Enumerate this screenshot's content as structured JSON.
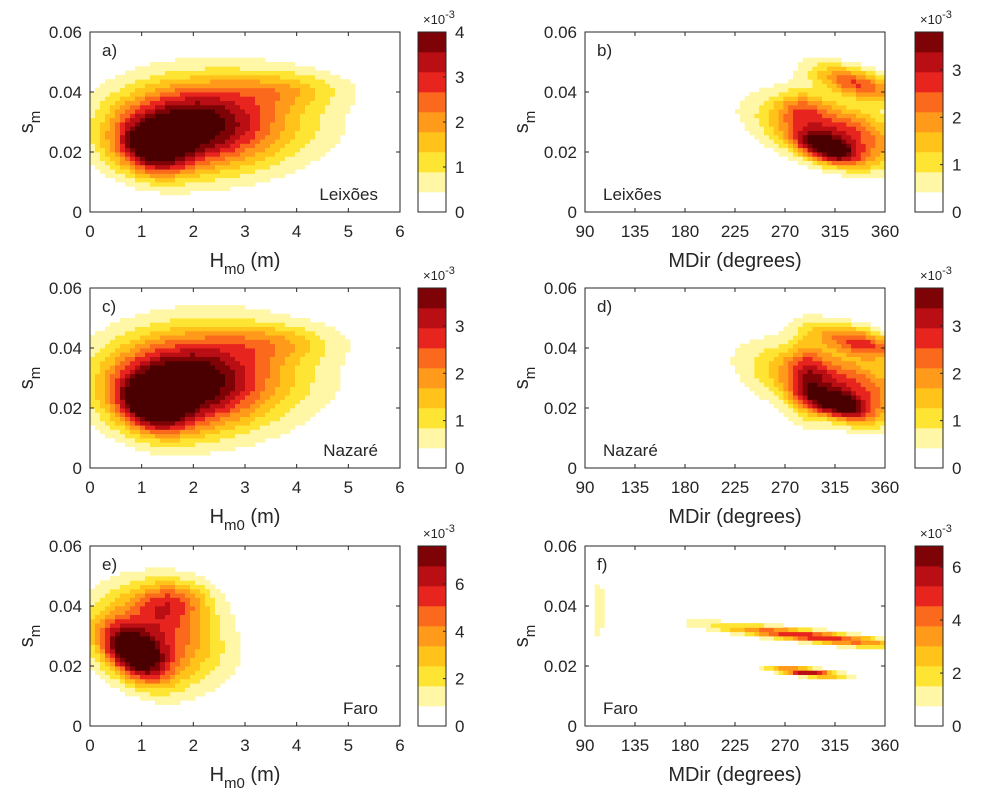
{
  "palette": [
    "#ffffff",
    "#fff7a6",
    "#ffe533",
    "#ffc31a",
    "#ff9a1a",
    "#fb6a1c",
    "#e8241f",
    "#b80e14",
    "#7e0307",
    "#4a0000"
  ],
  "chart_data": [
    {
      "type": "heatmap",
      "panel": "a)",
      "site": "Leixões",
      "xlabel": "H",
      "xlabel_sub": "m0",
      "xlabel_unit": " (m)",
      "ylabel": "s",
      "ylabel_sub": "m",
      "xlim": [
        0,
        6
      ],
      "ylim": [
        0,
        0.06
      ],
      "xticks": [
        "0",
        "1",
        "2",
        "3",
        "4",
        "5",
        "6"
      ],
      "yticks": [
        "0",
        "0.02",
        "0.04",
        "0.06"
      ],
      "colorbar": {
        "ticks": [
          "0",
          "1",
          "2",
          "3",
          "4"
        ],
        "max": 4,
        "multiplier": "×10",
        "exponent": "-3"
      },
      "blobs": [
        {
          "x": 2.5,
          "y": 0.03,
          "sx": 1.3,
          "sy": 0.011,
          "a": 1.4,
          "rot": 8
        },
        {
          "x": 1.7,
          "y": 0.028,
          "sx": 0.9,
          "sy": 0.009,
          "a": 1.3,
          "rot": 10
        },
        {
          "x": 1.2,
          "y": 0.021,
          "sx": 0.45,
          "sy": 0.006,
          "a": 1.5,
          "rot": 18
        },
        {
          "x": 3.8,
          "y": 0.041,
          "sx": 0.8,
          "sy": 0.004,
          "a": 0.5,
          "rot": 0
        }
      ]
    },
    {
      "type": "heatmap",
      "panel": "b)",
      "site": "Leixões",
      "xlabel": "MDir (degrees)",
      "ylabel": "s",
      "ylabel_sub": "m",
      "xlim": [
        90,
        360
      ],
      "ylim": [
        0,
        0.06
      ],
      "xticks": [
        "90",
        "135",
        "180",
        "225",
        "270",
        "315",
        "360"
      ],
      "yticks": [
        "0",
        "0.02",
        "0.04",
        "0.06"
      ],
      "colorbar": {
        "ticks": [
          "0",
          "1",
          "2",
          "3"
        ],
        "max": 3.8,
        "multiplier": "×10",
        "exponent": "-3"
      },
      "blobs": [
        {
          "x": 315,
          "y": 0.027,
          "sx": 28,
          "sy": 0.011,
          "a": 1.6,
          "rot": 60
        },
        {
          "x": 309,
          "y": 0.021,
          "sx": 12,
          "sy": 0.005,
          "a": 1.8,
          "rot": 55
        },
        {
          "x": 335,
          "y": 0.043,
          "sx": 14,
          "sy": 0.007,
          "a": 1.4,
          "rot": 60
        },
        {
          "x": 285,
          "y": 0.035,
          "sx": 14,
          "sy": 0.004,
          "a": 0.5,
          "rot": 0
        }
      ]
    },
    {
      "type": "heatmap",
      "panel": "c)",
      "site": "Nazaré",
      "xlabel": "H",
      "xlabel_sub": "m0",
      "xlabel_unit": " (m)",
      "ylabel": "s",
      "ylabel_sub": "m",
      "xlim": [
        0,
        6
      ],
      "ylim": [
        0,
        0.06
      ],
      "xticks": [
        "0",
        "1",
        "2",
        "3",
        "4",
        "5",
        "6"
      ],
      "yticks": [
        "0",
        "0.02",
        "0.04",
        "0.06"
      ],
      "colorbar": {
        "ticks": [
          "0",
          "1",
          "2",
          "3"
        ],
        "max": 3.8,
        "multiplier": "×10",
        "exponent": "-3"
      },
      "blobs": [
        {
          "x": 2.4,
          "y": 0.031,
          "sx": 1.3,
          "sy": 0.012,
          "a": 1.4,
          "rot": 8
        },
        {
          "x": 1.6,
          "y": 0.027,
          "sx": 0.9,
          "sy": 0.01,
          "a": 1.5,
          "rot": 10
        },
        {
          "x": 1.2,
          "y": 0.021,
          "sx": 0.4,
          "sy": 0.006,
          "a": 1.7,
          "rot": 18
        },
        {
          "x": 3.6,
          "y": 0.042,
          "sx": 0.8,
          "sy": 0.004,
          "a": 0.5,
          "rot": 0
        }
      ]
    },
    {
      "type": "heatmap",
      "panel": "d)",
      "site": "Nazaré",
      "xlabel": "MDir (degrees)",
      "ylabel": "s",
      "ylabel_sub": "m",
      "xlim": [
        90,
        360
      ],
      "ylim": [
        0,
        0.06
      ],
      "xticks": [
        "90",
        "135",
        "180",
        "225",
        "270",
        "315",
        "360"
      ],
      "yticks": [
        "0",
        "0.02",
        "0.04",
        "0.06"
      ],
      "colorbar": {
        "ticks": [
          "0",
          "1",
          "2",
          "3"
        ],
        "max": 3.8,
        "multiplier": "×10",
        "exponent": "-3"
      },
      "blobs": [
        {
          "x": 318,
          "y": 0.028,
          "sx": 30,
          "sy": 0.012,
          "a": 1.6,
          "rot": 60
        },
        {
          "x": 318,
          "y": 0.021,
          "sx": 12,
          "sy": 0.005,
          "a": 1.7,
          "rot": 55
        },
        {
          "x": 338,
          "y": 0.042,
          "sx": 14,
          "sy": 0.007,
          "a": 1.4,
          "rot": 62
        },
        {
          "x": 290,
          "y": 0.03,
          "sx": 12,
          "sy": 0.01,
          "a": 0.6,
          "rot": 0
        }
      ]
    },
    {
      "type": "heatmap",
      "panel": "e)",
      "site": "Faro",
      "xlabel": "H",
      "xlabel_sub": "m0",
      "xlabel_unit": " (m)",
      "ylabel": "s",
      "ylabel_sub": "m",
      "xlim": [
        0,
        6
      ],
      "ylim": [
        0,
        0.06
      ],
      "xticks": [
        "0",
        "1",
        "2",
        "3",
        "4",
        "5",
        "6"
      ],
      "yticks": [
        "0",
        "0.02",
        "0.04",
        "0.06"
      ],
      "colorbar": {
        "ticks": [
          "0",
          "2",
          "4",
          "6"
        ],
        "max": 7.6,
        "multiplier": "×10",
        "exponent": "-3"
      },
      "blobs": [
        {
          "x": 1.3,
          "y": 0.03,
          "sx": 0.8,
          "sy": 0.011,
          "a": 1.5,
          "rot": 20
        },
        {
          "x": 0.85,
          "y": 0.024,
          "sx": 0.35,
          "sy": 0.007,
          "a": 1.9,
          "rot": 25
        },
        {
          "x": 1.6,
          "y": 0.042,
          "sx": 0.5,
          "sy": 0.005,
          "a": 0.9,
          "rot": 10
        }
      ]
    },
    {
      "type": "heatmap",
      "panel": "f)",
      "site": "Faro",
      "xlabel": "MDir (degrees)",
      "ylabel": "s",
      "ylabel_sub": "m",
      "xlim": [
        90,
        360
      ],
      "ylim": [
        0,
        0.06
      ],
      "xticks": [
        "90",
        "135",
        "180",
        "225",
        "270",
        "315",
        "360"
      ],
      "yticks": [
        "0",
        "0.02",
        "0.04",
        "0.06"
      ],
      "colorbar": {
        "ticks": [
          "0",
          "2",
          "4",
          "6"
        ],
        "max": 6.8,
        "multiplier": "×10",
        "exponent": "-3"
      },
      "blobs": [
        {
          "x": 293,
          "y": 0.03,
          "sx": 6,
          "sy": 0.013,
          "a": 1.7,
          "rot": 80
        },
        {
          "x": 289,
          "y": 0.018,
          "sx": 4,
          "sy": 0.005,
          "a": 1.9,
          "rot": 80
        },
        {
          "x": 102,
          "y": 0.039,
          "sx": 4,
          "sy": 0.008,
          "a": 0.45,
          "rot": 0
        }
      ]
    }
  ]
}
